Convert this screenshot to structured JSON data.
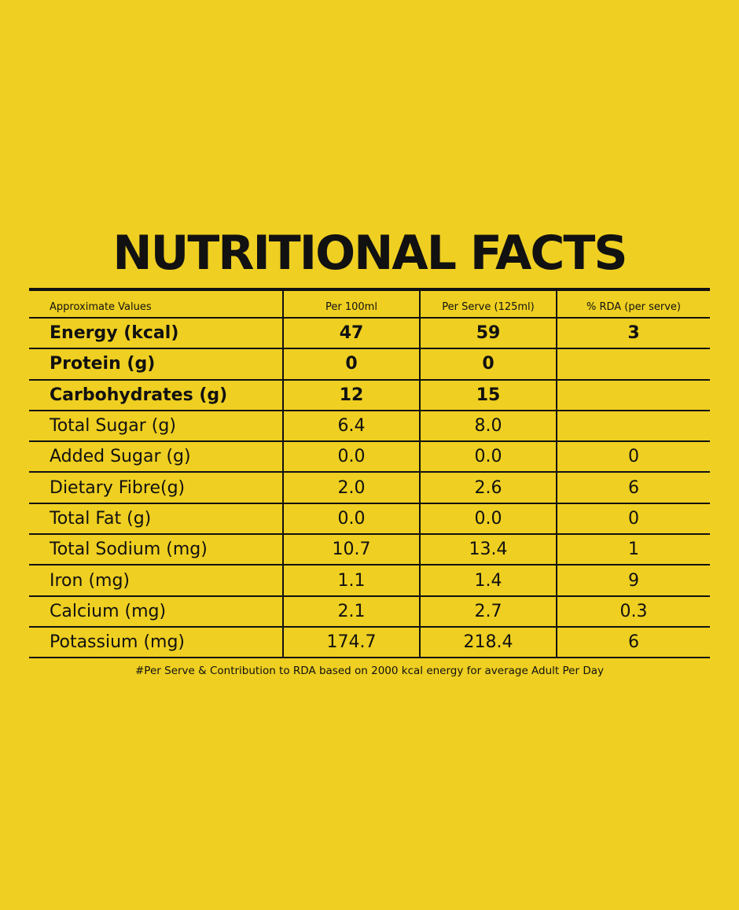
{
  "title": "NUTRITIONAL FACTS",
  "table": {
    "headers": [
      "Approximate Values",
      "Per 100ml",
      "Per Serve (125ml)",
      "% RDA (per serve)"
    ],
    "rows": [
      {
        "label": "Energy (kcal)",
        "per100": "47",
        "perServe": "59",
        "rda": "3",
        "bold": true
      },
      {
        "label": "Protein (g)",
        "per100": "0",
        "perServe": "0",
        "rda": "",
        "bold": true
      },
      {
        "label": "Carbohydrates (g)",
        "per100": "12",
        "perServe": "15",
        "rda": "",
        "bold": true
      },
      {
        "label": "Total Sugar (g)",
        "per100": "6.4",
        "perServe": "8.0",
        "rda": "",
        "bold": false
      },
      {
        "label": "Added Sugar (g)",
        "per100": "0.0",
        "perServe": "0.0",
        "rda": "0",
        "bold": false
      },
      {
        "label": "Dietary Fibre(g)",
        "per100": "2.0",
        "perServe": "2.6",
        "rda": "6",
        "bold": false
      },
      {
        "label": "Total Fat (g)",
        "per100": "0.0",
        "perServe": "0.0",
        "rda": "0",
        "bold": false
      },
      {
        "label": "Total Sodium (mg)",
        "per100": "10.7",
        "perServe": "13.4",
        "rda": "1",
        "bold": false
      },
      {
        "label": "Iron (mg)",
        "per100": "1.1",
        "perServe": "1.4",
        "rda": "9",
        "bold": false
      },
      {
        "label": "Calcium (mg)",
        "per100": "2.1",
        "perServe": "2.7",
        "rda": "0.3",
        "bold": false
      },
      {
        "label": "Potassium (mg)",
        "per100": "174.7",
        "perServe": "218.4",
        "rda": "6",
        "bold": false
      }
    ]
  },
  "footnote": "#Per Serve & Contribution to RDA based on 2000 kcal energy for average Adult Per Day",
  "colors": {
    "background": "#EFCF21",
    "ink": "#111111"
  }
}
